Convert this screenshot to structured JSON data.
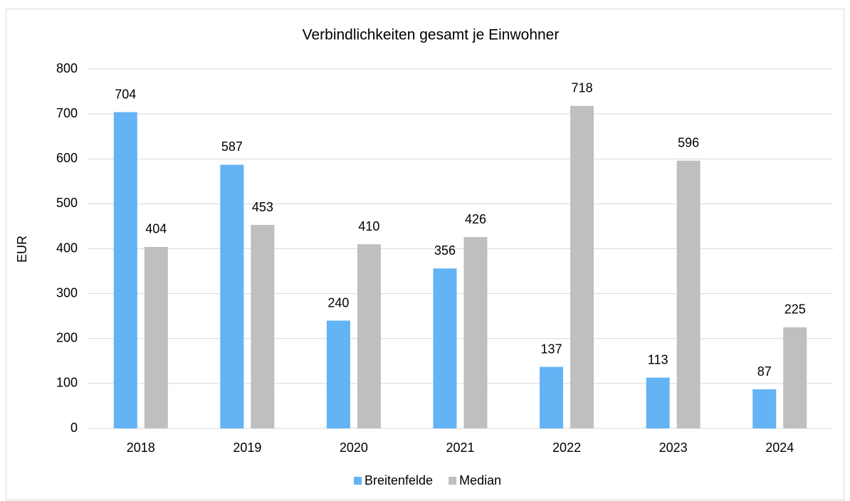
{
  "chart_data": {
    "type": "bar",
    "title": "Verbindlichkeiten gesamt je Einwohner",
    "ylabel": "EUR",
    "categories": [
      "2018",
      "2019",
      "2020",
      "2021",
      "2022",
      "2023",
      "2024"
    ],
    "series": [
      {
        "name": "Breitenfelde",
        "color": "#63b3f5",
        "values": [
          704,
          587,
          240,
          356,
          137,
          113,
          87
        ]
      },
      {
        "name": "Median",
        "color": "#bfbfbf",
        "values": [
          404,
          453,
          410,
          426,
          718,
          596,
          225
        ]
      }
    ],
    "ylim": [
      0,
      800
    ],
    "yticks": [
      0,
      100,
      200,
      300,
      400,
      500,
      600,
      700,
      800
    ],
    "grid": true,
    "legend": "bottom"
  }
}
